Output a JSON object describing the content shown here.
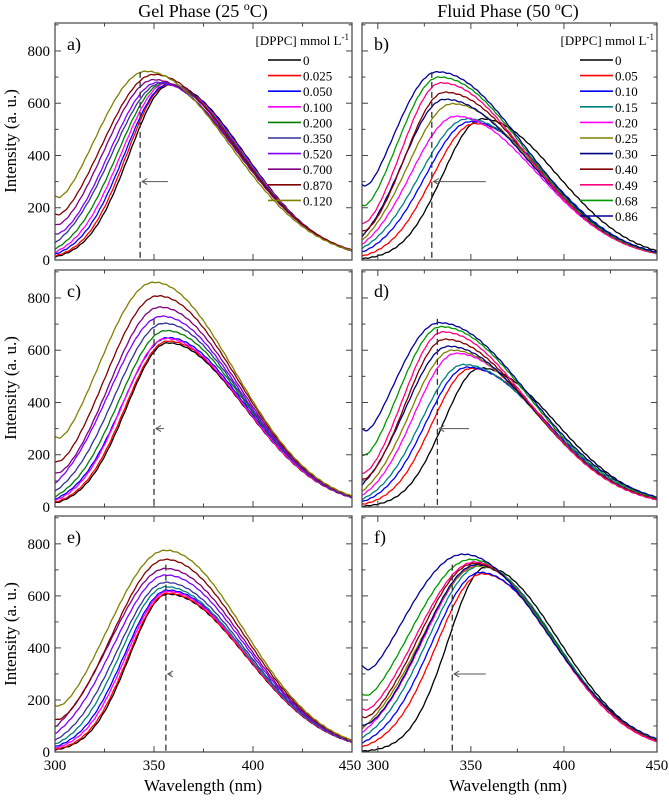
{
  "titles": {
    "gel": {
      "text": "Gel Phase  (25 ",
      "sup": "o",
      "tail": "C)"
    },
    "fluid": {
      "text": "Fluid Phase  (50 ",
      "sup": "o",
      "tail": "C)"
    }
  },
  "xlabel": "Wavelength (nm)",
  "ylabel": "Intensity (a. u.)",
  "legend_title": {
    "text": "[DPPC] mmol L",
    "sup": "-1"
  },
  "chart_data": [
    {
      "id": "a",
      "label": "a)",
      "type": "line",
      "phase": "gel",
      "xlim": [
        300,
        450
      ],
      "ylim": [
        0,
        907
      ],
      "xticks": [
        300,
        350,
        400,
        450
      ],
      "yticks": [
        0,
        200,
        400,
        600,
        800
      ],
      "dashed_line_nm": 343,
      "arrow": {
        "from_nm": 357,
        "to_nm": 344,
        "intensity": 300
      },
      "legend": true,
      "note": "series params: [peak_nm, peak_intensity, intensity_at_start, intensity_at_450]",
      "series": [
        {
          "name": "0",
          "color": "#000000",
          "p": [
            358,
            670,
            12,
            35
          ]
        },
        {
          "name": "0.025",
          "color": "#ff0000",
          "p": [
            357,
            670,
            15,
            35
          ]
        },
        {
          "name": "0.050",
          "color": "#0000ff",
          "p": [
            357,
            672,
            22,
            35
          ]
        },
        {
          "name": "0.100",
          "color": "#ff00ff",
          "p": [
            356,
            675,
            30,
            36
          ]
        },
        {
          "name": "0.200",
          "color": "#008000",
          "p": [
            355,
            676,
            42,
            36
          ]
        },
        {
          "name": "0.350",
          "color": "#333399",
          "p": [
            354,
            678,
            65,
            37
          ]
        },
        {
          "name": "0.520",
          "color": "#8000ff",
          "p": [
            352,
            680,
            100,
            37
          ]
        },
        {
          "name": "0.700",
          "color": "#800080",
          "p": [
            350,
            690,
            135,
            38
          ]
        },
        {
          "name": "0.870",
          "color": "#800000",
          "p": [
            350,
            710,
            175,
            38
          ]
        },
        {
          "name": "0.120",
          "color": "#808000",
          "p": [
            346,
            722,
            245,
            36
          ]
        }
      ]
    },
    {
      "id": "b",
      "label": "b)",
      "type": "line",
      "phase": "fluid",
      "xlim": [
        291.5,
        450
      ],
      "ylim": [
        0,
        907
      ],
      "xticks": [
        300,
        350,
        400,
        450
      ],
      "yticks": [
        0,
        200,
        400,
        600,
        800
      ],
      "dashed_line_nm": 329,
      "arrow": {
        "from_nm": 358,
        "to_nm": 330,
        "intensity": 300
      },
      "legend": true,
      "series": [
        {
          "name": "0",
          "color": "#000000",
          "p": [
            356,
            540,
            5,
            35
          ]
        },
        {
          "name": "0.05",
          "color": "#ff0000",
          "p": [
            352,
            522,
            15,
            25
          ]
        },
        {
          "name": "0.10",
          "color": "#0000ff",
          "p": [
            350,
            530,
            30,
            28
          ]
        },
        {
          "name": "0.15",
          "color": "#008080",
          "p": [
            348,
            540,
            45,
            28
          ]
        },
        {
          "name": "0.20",
          "color": "#ff00ff",
          "p": [
            342,
            550,
            60,
            25
          ]
        },
        {
          "name": "0.25",
          "color": "#808000",
          "p": [
            340,
            598,
            75,
            25
          ]
        },
        {
          "name": "0.30",
          "color": "#000080",
          "p": [
            336,
            615,
            90,
            28
          ]
        },
        {
          "name": "0.40",
          "color": "#800000",
          "p": [
            336,
            642,
            110,
            28
          ]
        },
        {
          "name": "0.49",
          "color": "#ff0080",
          "p": [
            334,
            678,
            140,
            25
          ]
        },
        {
          "name": "0.68",
          "color": "#009900",
          "p": [
            333,
            700,
            210,
            28
          ]
        },
        {
          "name": "0.86",
          "color": "#000099",
          "p": [
            332,
            720,
            290,
            30
          ]
        }
      ]
    },
    {
      "id": "c",
      "label": "c)",
      "type": "line",
      "phase": "gel",
      "xlim": [
        300,
        450
      ],
      "ylim": [
        0,
        907
      ],
      "xticks": [
        300,
        350,
        400,
        450
      ],
      "yticks": [
        0,
        200,
        400,
        600,
        800
      ],
      "dashed_line_nm": 350,
      "arrow": {
        "from_nm": 355,
        "to_nm": 351,
        "intensity": 300
      },
      "legend": false,
      "series": [
        {
          "name": "0",
          "color": "#000000",
          "p": [
            357,
            628,
            15,
            36
          ]
        },
        {
          "name": "0.025",
          "color": "#ff0000",
          "p": [
            357,
            635,
            18,
            36
          ]
        },
        {
          "name": "0.050",
          "color": "#0000ff",
          "p": [
            357,
            648,
            30,
            37
          ]
        },
        {
          "name": "0.100",
          "color": "#ff00ff",
          "p": [
            356,
            645,
            25,
            37
          ]
        },
        {
          "name": "0.200",
          "color": "#008000",
          "p": [
            356,
            675,
            40,
            38
          ]
        },
        {
          "name": "0.350",
          "color": "#333399",
          "p": [
            355,
            703,
            60,
            38
          ]
        },
        {
          "name": "0.520",
          "color": "#8000ff",
          "p": [
            354,
            730,
            90,
            39
          ]
        },
        {
          "name": "0.700",
          "color": "#800080",
          "p": [
            353,
            765,
            130,
            40
          ]
        },
        {
          "name": "0.870",
          "color": "#800000",
          "p": [
            352,
            808,
            175,
            41
          ]
        },
        {
          "name": "0.120",
          "color": "#808000",
          "p": [
            350,
            860,
            270,
            42
          ]
        }
      ]
    },
    {
      "id": "d",
      "label": "d)",
      "type": "line",
      "phase": "fluid",
      "xlim": [
        291.5,
        450
      ],
      "ylim": [
        0,
        907
      ],
      "xticks": [
        300,
        350,
        400,
        450
      ],
      "yticks": [
        0,
        200,
        400,
        600,
        800
      ],
      "dashed_line_nm": 332,
      "arrow": {
        "from_nm": 349,
        "to_nm": 333,
        "intensity": 300
      },
      "legend": false,
      "series": [
        {
          "name": "0",
          "color": "#000000",
          "p": [
            355,
            532,
            3,
            35
          ]
        },
        {
          "name": "0.05",
          "color": "#ff0000",
          "p": [
            350,
            530,
            10,
            28
          ]
        },
        {
          "name": "0.10",
          "color": "#0000ff",
          "p": [
            348,
            535,
            20,
            30
          ]
        },
        {
          "name": "0.15",
          "color": "#008080",
          "p": [
            346,
            545,
            30,
            30
          ]
        },
        {
          "name": "0.20",
          "color": "#ff00ff",
          "p": [
            342,
            588,
            45,
            28
          ]
        },
        {
          "name": "0.25",
          "color": "#808000",
          "p": [
            340,
            600,
            60,
            28
          ]
        },
        {
          "name": "0.30",
          "color": "#000080",
          "p": [
            338,
            615,
            85,
            30
          ]
        },
        {
          "name": "0.40",
          "color": "#800000",
          "p": [
            336,
            642,
            105,
            30
          ]
        },
        {
          "name": "0.49",
          "color": "#ff0080",
          "p": [
            335,
            670,
            130,
            28
          ]
        },
        {
          "name": "0.68",
          "color": "#009900",
          "p": [
            334,
            690,
            200,
            35
          ]
        },
        {
          "name": "0.86",
          "color": "#000099",
          "p": [
            333,
            705,
            300,
            38
          ]
        }
      ]
    },
    {
      "id": "e",
      "label": "e)",
      "type": "line",
      "phase": "gel",
      "xlim": [
        300,
        450
      ],
      "ylim": [
        0,
        907
      ],
      "xticks": [
        300,
        350,
        400,
        450
      ],
      "yticks": [
        0,
        200,
        400,
        600,
        800
      ],
      "dashed_line_nm": 356,
      "arrow": {
        "from_nm": 359,
        "to_nm": 357,
        "intensity": 300
      },
      "legend": false,
      "series": [
        {
          "name": "0",
          "color": "#000000",
          "p": [
            357,
            607,
            8,
            38
          ]
        },
        {
          "name": "0.025",
          "color": "#ff0000",
          "p": [
            357,
            610,
            10,
            38
          ]
        },
        {
          "name": "0.050",
          "color": "#0000ff",
          "p": [
            357,
            622,
            20,
            39
          ]
        },
        {
          "name": "0.100",
          "color": "#ff00ff",
          "p": [
            357,
            617,
            15,
            39
          ]
        },
        {
          "name": "0.200",
          "color": "#008080",
          "p": [
            356,
            635,
            30,
            40
          ]
        },
        {
          "name": "0.350",
          "color": "#333399",
          "p": [
            356,
            652,
            45,
            41
          ]
        },
        {
          "name": "0.520",
          "color": "#8000ff",
          "p": [
            356,
            680,
            70,
            42
          ]
        },
        {
          "name": "0.700",
          "color": "#800080",
          "p": [
            356,
            705,
            95,
            43
          ]
        },
        {
          "name": "0.870",
          "color": "#800000",
          "p": [
            356,
            740,
            125,
            44
          ]
        },
        {
          "name": "0.120",
          "color": "#808000",
          "p": [
            356,
            775,
            180,
            45
          ]
        }
      ]
    },
    {
      "id": "f",
      "label": "f)",
      "type": "line",
      "phase": "fluid",
      "xlim": [
        291.5,
        450
      ],
      "ylim": [
        0,
        907
      ],
      "xticks": [
        300,
        350,
        400,
        450
      ],
      "yticks": [
        0,
        200,
        400,
        600,
        800
      ],
      "dashed_line_nm": 340,
      "arrow": {
        "from_nm": 358,
        "to_nm": 341,
        "intensity": 300
      },
      "legend": false,
      "series": [
        {
          "name": "0",
          "color": "#000000",
          "p": [
            358,
            710,
            3,
            45
          ]
        },
        {
          "name": "0.05",
          "color": "#ff0000",
          "p": [
            356,
            685,
            20,
            40
          ]
        },
        {
          "name": "0.10",
          "color": "#0000ff",
          "p": [
            355,
            690,
            35,
            45
          ]
        },
        {
          "name": "0.15",
          "color": "#008080",
          "p": [
            355,
            715,
            55,
            42
          ]
        },
        {
          "name": "0.20",
          "color": "#ff00ff",
          "p": [
            354,
            720,
            75,
            40
          ]
        },
        {
          "name": "0.25",
          "color": "#808000",
          "p": [
            354,
            715,
            90,
            42
          ]
        },
        {
          "name": "0.30",
          "color": "#000080",
          "p": [
            353,
            720,
            105,
            45
          ]
        },
        {
          "name": "0.40",
          "color": "#800000",
          "p": [
            352,
            725,
            135,
            45
          ]
        },
        {
          "name": "0.49",
          "color": "#ff0080",
          "p": [
            352,
            730,
            165,
            40
          ]
        },
        {
          "name": "0.68",
          "color": "#009900",
          "p": [
            350,
            740,
            225,
            48
          ]
        },
        {
          "name": "0.86",
          "color": "#000099",
          "p": [
            346,
            760,
            335,
            50
          ]
        }
      ]
    }
  ]
}
